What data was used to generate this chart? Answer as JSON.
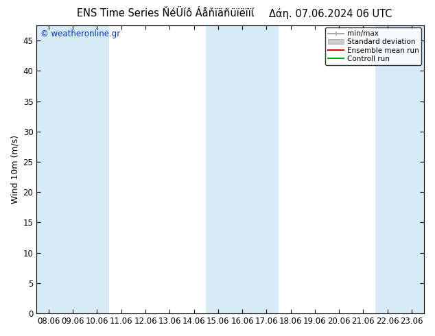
{
  "title_center": "ENS Time Series ŇéÜíô Áåňïäñüïëïïί",
  "title_right": "Δάη. 07.06.2024 06 UTC",
  "watermark": "© weatheronline.gr",
  "ylabel": "Wind 10m (m/s)",
  "ylim": [
    0,
    47.5
  ],
  "yticks": [
    0,
    5,
    10,
    15,
    20,
    25,
    30,
    35,
    40,
    45
  ],
  "xtick_labels": [
    "08.06",
    "09.06",
    "10.06",
    "11.06",
    "12.06",
    "13.06",
    "14.06",
    "15.06",
    "16.06",
    "17.06",
    "18.06",
    "19.06",
    "20.06",
    "21.06",
    "22.06",
    "23.06"
  ],
  "band_color": "#d6eaf8",
  "shaded_col_ranges": [
    [
      0,
      0
    ],
    [
      1,
      2
    ],
    [
      7,
      9
    ],
    [
      14,
      15
    ]
  ],
  "bg_color": "#ffffff",
  "plot_bg": "#ffffff",
  "title_fontsize": 10.5,
  "axis_fontsize": 9,
  "tick_fontsize": 8.5
}
